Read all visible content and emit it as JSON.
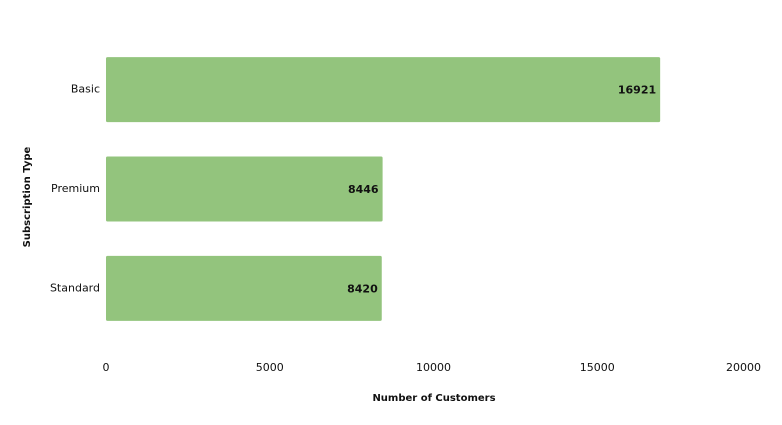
{
  "chart_data": {
    "type": "bar",
    "orientation": "horizontal",
    "title": "",
    "xlabel": "Number of Customers",
    "ylabel": "Subscription Type",
    "categories": [
      "Basic",
      "Premium",
      "Standard"
    ],
    "values": [
      16921,
      8446,
      8420
    ],
    "data_labels": [
      "16921",
      "8446",
      "8420"
    ],
    "xlim": [
      0,
      20000
    ],
    "xticks": [
      0,
      5000,
      10000,
      15000,
      20000
    ],
    "xtick_labels": [
      "0",
      "5000",
      "10000",
      "15000",
      "20000"
    ],
    "grid": false,
    "legend": "none",
    "bar_color": "#93c47d",
    "text_color": "#111111"
  }
}
